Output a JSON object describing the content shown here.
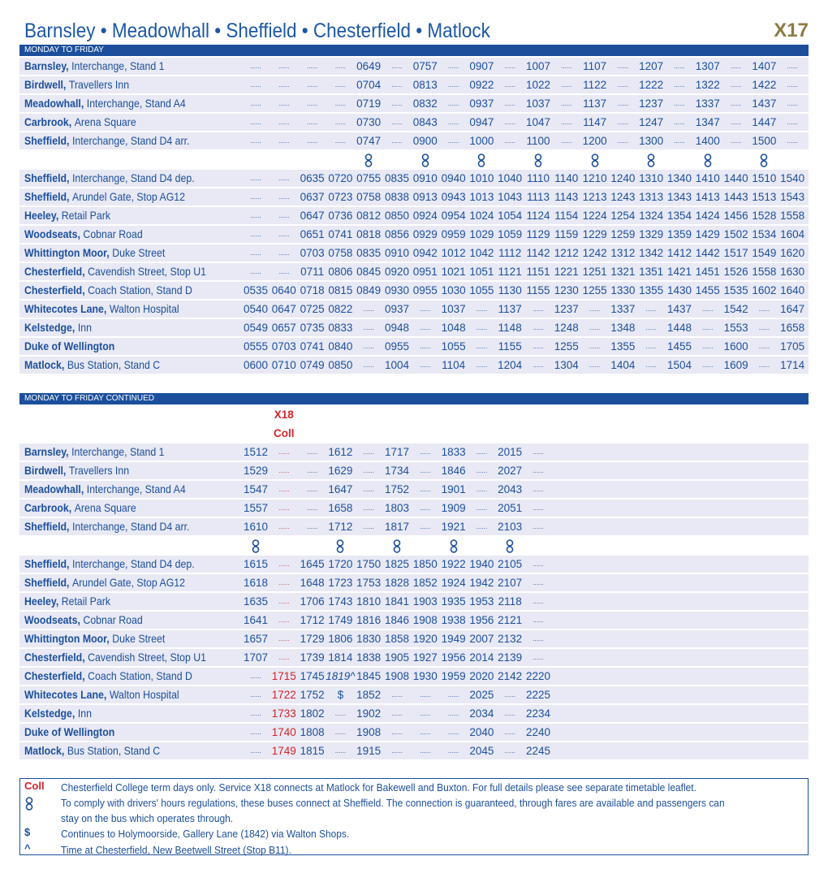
{
  "header": {
    "title": "Barnsley • Meadowhall • Sheffield • Chesterfield • Matlock",
    "route": "X17"
  },
  "tables": [
    {
      "heading": "MONDAY TO FRIDAY",
      "column_heads": null,
      "red_columns": [],
      "stops": [
        {
          "name": "Barnsley,",
          "detail": "Interchange, Stand 1",
          "times": [
            "......",
            "......",
            "......",
            "......",
            "0649",
            "......",
            "0757",
            "......",
            "0907",
            "......",
            "1007",
            "......",
            "1107",
            "......",
            "1207",
            "......",
            "1307",
            "......",
            "1407",
            "......"
          ]
        },
        {
          "name": "Birdwell,",
          "detail": "Travellers Inn",
          "times": [
            "......",
            "......",
            "......",
            "......",
            "0704",
            "......",
            "0813",
            "......",
            "0922",
            "......",
            "1022",
            "......",
            "1122",
            "......",
            "1222",
            "......",
            "1322",
            "......",
            "1422",
            "......"
          ]
        },
        {
          "name": "Meadowhall,",
          "detail": "Interchange, Stand A4",
          "times": [
            "......",
            "......",
            "......",
            "......",
            "0719",
            "......",
            "0832",
            "......",
            "0937",
            "......",
            "1037",
            "......",
            "1137",
            "......",
            "1237",
            "......",
            "1337",
            "......",
            "1437",
            "......"
          ]
        },
        {
          "name": "Carbrook,",
          "detail": "Arena Square",
          "times": [
            "......",
            "......",
            "......",
            "......",
            "0730",
            "......",
            "0843",
            "......",
            "0947",
            "......",
            "1047",
            "......",
            "1147",
            "......",
            "1247",
            "......",
            "1347",
            "......",
            "1447",
            "......"
          ]
        },
        {
          "name": "Sheffield,",
          "detail": "Interchange, Stand D4 arr.",
          "times": [
            "......",
            "......",
            "......",
            "......",
            "0747",
            "......",
            "0900",
            "......",
            "1000",
            "......",
            "1100",
            "......",
            "1200",
            "......",
            "1300",
            "......",
            "1400",
            "......",
            "1500",
            "......"
          ]
        },
        {
          "links": [
            false,
            false,
            false,
            false,
            true,
            false,
            true,
            false,
            true,
            false,
            true,
            false,
            true,
            false,
            true,
            false,
            true,
            false,
            true,
            false
          ]
        },
        {
          "name": "Sheffield,",
          "detail": "Interchange, Stand D4 dep.",
          "times": [
            "......",
            "......",
            "0635",
            "0720",
            "0755",
            "0835",
            "0910",
            "0940",
            "1010",
            "1040",
            "1110",
            "1140",
            "1210",
            "1240",
            "1310",
            "1340",
            "1410",
            "1440",
            "1510",
            "1540"
          ]
        },
        {
          "name": "Sheffield,",
          "detail": "Arundel Gate, Stop AG12",
          "times": [
            "......",
            "......",
            "0637",
            "0723",
            "0758",
            "0838",
            "0913",
            "0943",
            "1013",
            "1043",
            "1113",
            "1143",
            "1213",
            "1243",
            "1313",
            "1343",
            "1413",
            "1443",
            "1513",
            "1543"
          ]
        },
        {
          "name": "Heeley,",
          "detail": "Retail Park",
          "times": [
            "......",
            "......",
            "0647",
            "0736",
            "0812",
            "0850",
            "0924",
            "0954",
            "1024",
            "1054",
            "1124",
            "1154",
            "1224",
            "1254",
            "1324",
            "1354",
            "1424",
            "1456",
            "1528",
            "1558"
          ]
        },
        {
          "name": "Woodseats,",
          "detail": "Cobnar Road",
          "times": [
            "......",
            "......",
            "0651",
            "0741",
            "0818",
            "0856",
            "0929",
            "0959",
            "1029",
            "1059",
            "1129",
            "1159",
            "1229",
            "1259",
            "1329",
            "1359",
            "1429",
            "1502",
            "1534",
            "1604"
          ]
        },
        {
          "name": "Whittington Moor,",
          "detail": "Duke Street",
          "times": [
            "......",
            "......",
            "0703",
            "0758",
            "0835",
            "0910",
            "0942",
            "1012",
            "1042",
            "1112",
            "1142",
            "1212",
            "1242",
            "1312",
            "1342",
            "1412",
            "1442",
            "1517",
            "1549",
            "1620"
          ]
        },
        {
          "name": "Chesterfield,",
          "detail": "Cavendish Street, Stop U1",
          "times": [
            "......",
            "......",
            "0711",
            "0806",
            "0845",
            "0920",
            "0951",
            "1021",
            "1051",
            "1121",
            "1151",
            "1221",
            "1251",
            "1321",
            "1351",
            "1421",
            "1451",
            "1526",
            "1558",
            "1630"
          ]
        },
        {
          "name": "Chesterfield,",
          "detail": "Coach Station, Stand D",
          "times": [
            "0535",
            "0640",
            "0718",
            "0815",
            "0849",
            "0930",
            "0955",
            "1030",
            "1055",
            "1130",
            "1155",
            "1230",
            "1255",
            "1330",
            "1355",
            "1430",
            "1455",
            "1535",
            "1602",
            "1640"
          ]
        },
        {
          "name": "Whitecotes Lane,",
          "detail": "Walton Hospital",
          "times": [
            "0540",
            "0647",
            "0725",
            "0822",
            "......",
            "0937",
            "......",
            "1037",
            "......",
            "1137",
            "......",
            "1237",
            "......",
            "1337",
            "......",
            "1437",
            "......",
            "1542",
            "......",
            "1647"
          ]
        },
        {
          "name": "Kelstedge,",
          "detail": "Inn",
          "times": [
            "0549",
            "0657",
            "0735",
            "0833",
            "......",
            "0948",
            "......",
            "1048",
            "......",
            "1148",
            "......",
            "1248",
            "......",
            "1348",
            "......",
            "1448",
            "......",
            "1553",
            "......",
            "1658"
          ]
        },
        {
          "name": "Duke of Wellington",
          "detail": null,
          "times": [
            "0555",
            "0703",
            "0741",
            "0840",
            "......",
            "0955",
            "......",
            "1055",
            "......",
            "1155",
            "......",
            "1255",
            "......",
            "1355",
            "......",
            "1455",
            "......",
            "1600",
            "......",
            "1705"
          ]
        },
        {
          "name": "Matlock,",
          "detail": "Bus Station, Stand C",
          "times": [
            "0600",
            "0710",
            "0749",
            "0850",
            "......",
            "1004",
            "......",
            "1104",
            "......",
            "1204",
            "......",
            "1304",
            "......",
            "1404",
            "......",
            "1504",
            "......",
            "1609",
            "......",
            "1714"
          ]
        }
      ]
    },
    {
      "heading": "MONDAY TO FRIDAY CONTINUED",
      "column_heads": [
        null,
        [
          "X18",
          "Coll"
        ],
        null,
        null,
        null,
        null,
        null,
        null,
        null,
        null,
        null
      ],
      "red_columns": [
        1
      ],
      "stops": [
        {
          "name": "Barnsley,",
          "detail": "Interchange, Stand 1",
          "times": [
            "1512",
            "......",
            "......",
            "1612",
            "......",
            "1717",
            "......",
            "1833",
            "......",
            "2015",
            "......"
          ]
        },
        {
          "name": "Birdwell,",
          "detail": "Travellers Inn",
          "times": [
            "1529",
            "......",
            "......",
            "1629",
            "......",
            "1734",
            "......",
            "1846",
            "......",
            "2027",
            "......"
          ]
        },
        {
          "name": "Meadowhall,",
          "detail": "Interchange, Stand A4",
          "times": [
            "1547",
            "......",
            "......",
            "1647",
            "......",
            "1752",
            "......",
            "1901",
            "......",
            "2043",
            "......"
          ]
        },
        {
          "name": "Carbrook,",
          "detail": "Arena Square",
          "times": [
            "1557",
            "......",
            "......",
            "1658",
            "......",
            "1803",
            "......",
            "1909",
            "......",
            "2051",
            "......"
          ]
        },
        {
          "name": "Sheffield,",
          "detail": "Interchange, Stand D4 arr.",
          "times": [
            "1610",
            "......",
            "......",
            "1712",
            "......",
            "1817",
            "......",
            "1921",
            "......",
            "2103",
            "......"
          ]
        },
        {
          "links": [
            true,
            false,
            false,
            true,
            false,
            true,
            false,
            true,
            false,
            true,
            false
          ]
        },
        {
          "name": "Sheffield,",
          "detail": "Interchange, Stand D4 dep.",
          "times": [
            "1615",
            "......",
            "1645",
            "1720",
            "1750",
            "1825",
            "1850",
            "1922",
            "1940",
            "2105",
            "......"
          ]
        },
        {
          "name": "Sheffield,",
          "detail": "Arundel Gate, Stop AG12",
          "times": [
            "1618",
            "......",
            "1648",
            "1723",
            "1753",
            "1828",
            "1852",
            "1924",
            "1942",
            "2107",
            "......"
          ]
        },
        {
          "name": "Heeley,",
          "detail": "Retail Park",
          "times": [
            "1635",
            "......",
            "1706",
            "1743",
            "1810",
            "1841",
            "1903",
            "1935",
            "1953",
            "2118",
            "......"
          ]
        },
        {
          "name": "Woodseats,",
          "detail": "Cobnar Road",
          "times": [
            "1641",
            "......",
            "1712",
            "1749",
            "1816",
            "1846",
            "1908",
            "1938",
            "1956",
            "2121",
            "......"
          ]
        },
        {
          "name": "Whittington Moor,",
          "detail": "Duke Street",
          "times": [
            "1657",
            "......",
            "1729",
            "1806",
            "1830",
            "1858",
            "1920",
            "1949",
            "2007",
            "2132",
            "......"
          ]
        },
        {
          "name": "Chesterfield,",
          "detail": "Cavendish Street, Stop U1",
          "times": [
            "1707",
            "......",
            "1739",
            "1814",
            "1838",
            "1905",
            "1927",
            "1956",
            "2014",
            "2139",
            "......"
          ]
        },
        {
          "name": "Chesterfield,",
          "detail": "Coach Station, Stand D",
          "times": [
            "......",
            "1715",
            "1745",
            "1819^",
            "1845",
            "1908",
            "1930",
            "1959",
            "2020",
            "2142",
            "2220"
          ]
        },
        {
          "name": "Whitecotes Lane,",
          "detail": "Walton Hospital",
          "times": [
            "......",
            "1722",
            "1752",
            "$",
            "1852",
            "......",
            "......",
            "......",
            "2025",
            "......",
            "2225"
          ]
        },
        {
          "name": "Kelstedge,",
          "detail": "Inn",
          "times": [
            "......",
            "1733",
            "1802",
            "......",
            "1902",
            "......",
            "......",
            "......",
            "2034",
            "......",
            "2234"
          ]
        },
        {
          "name": "Duke of Wellington",
          "detail": null,
          "times": [
            "......",
            "1740",
            "1808",
            "......",
            "1908",
            "......",
            "......",
            "......",
            "2040",
            "......",
            "2240"
          ]
        },
        {
          "name": "Matlock,",
          "detail": "Bus Station, Stand C",
          "times": [
            "......",
            "1749",
            "1815",
            "......",
            "1915",
            "......",
            "......",
            "......",
            "2045",
            "......",
            "2245"
          ]
        }
      ]
    }
  ],
  "notes": [
    {
      "key": "Coll",
      "text": "Chesterfield College term days only. Service X18 connects at Matlock for Bakewell and Buxton. For full details please see separate timetable leaflet."
    },
    {
      "key": null,
      "text": "To comply with drivers' hours regulations, these buses connect at Sheffield. The connection is guaranteed, through fares are available and passengers can stay on the bus which operates through."
    },
    {
      "key": "$",
      "text": "Continues to Holymoorside, Gallery Lane (1842) via Walton Shops."
    },
    {
      "key": "^",
      "text": "Time at Chesterfield, New Beetwell Street (Stop B11)."
    }
  ]
}
